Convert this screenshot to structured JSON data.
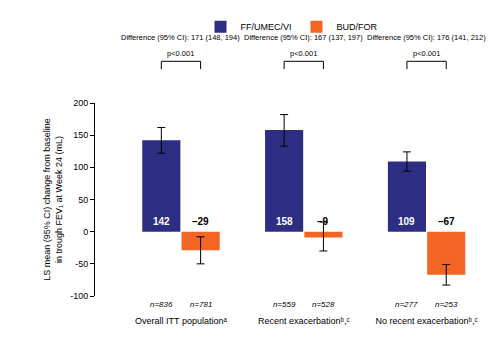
{
  "chart_data": {
    "type": "bar",
    "ylabel": [
      "LS mean (95% CI) change from baseline",
      "in trough FEV₁ at Week 24 (mL)"
    ],
    "categories": [
      "Overall ITT populationᵃ",
      "Recent exacerbationᵇ,ᶜ",
      "No recent exacerbationᵇ,ᶜ"
    ],
    "series": [
      {
        "name": "FF/UMEC/VI",
        "color": "#2d2e83",
        "values": [
          142,
          158,
          109
        ],
        "ci_low": [
          122,
          133,
          94
        ],
        "ci_high": [
          162,
          182,
          124
        ],
        "n_labels": [
          "n=836",
          "n=559",
          "n=277"
        ]
      },
      {
        "name": "BUD/FOR",
        "color": "#f26522",
        "values": [
          -29,
          -9,
          -67
        ],
        "value_labels": [
          "–29",
          "–9",
          "–67"
        ],
        "ci_low": [
          -50,
          -30,
          -83
        ],
        "ci_high": [
          -8,
          15,
          -51
        ],
        "n_labels": [
          "n=781",
          "n=528",
          "n=253"
        ]
      }
    ],
    "comparisons": [
      {
        "text": "Difference (95% CI): 171 (148, 194)",
        "p": "p<0.001"
      },
      {
        "text": "Difference (95% CI): 167 (137, 197)",
        "p": "p<0.001"
      },
      {
        "text": "Difference (95% CI): 176 (141, 212)",
        "p": "p<0.001"
      }
    ],
    "ylim": [
      -100,
      200
    ],
    "yticks": [
      -100,
      -50,
      0,
      50,
      100,
      150,
      200
    ],
    "grid": false,
    "legend": "top",
    "data_labels": true
  }
}
